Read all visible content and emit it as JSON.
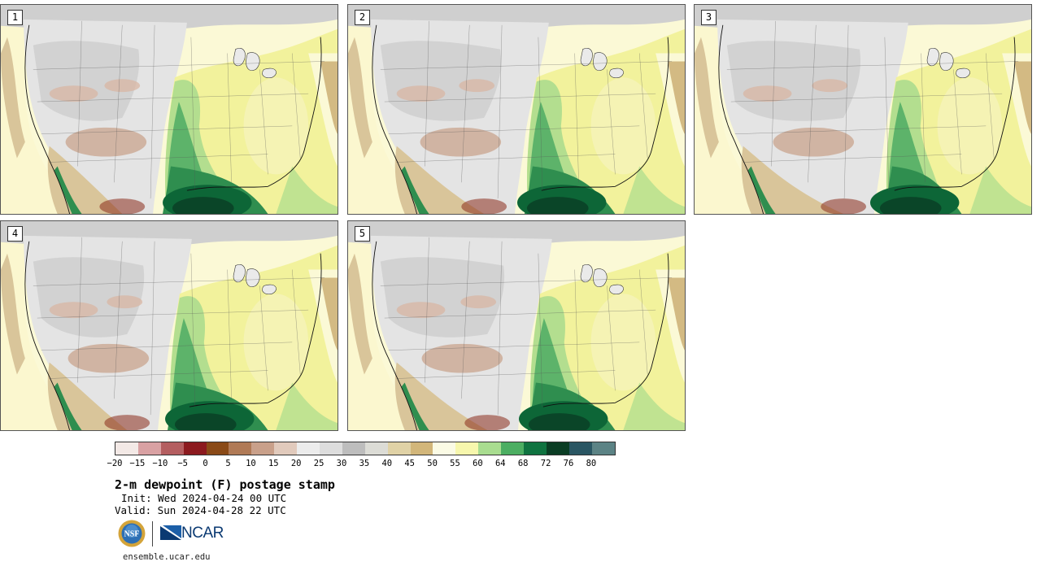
{
  "panels": [
    {
      "id": "1",
      "label": "1"
    },
    {
      "id": "2",
      "label": "2"
    },
    {
      "id": "3",
      "label": "3"
    },
    {
      "id": "4",
      "label": "4"
    },
    {
      "id": "5",
      "label": "5"
    }
  ],
  "colorbar": {
    "colors": [
      "#f3e9e6",
      "#d9a1a3",
      "#b45e60",
      "#8c1a1f",
      "#8a4a17",
      "#b07a56",
      "#c9a08a",
      "#e1cabc",
      "#ececec",
      "#dddddd",
      "#bdbdbd",
      "#dcdcd6",
      "#e0d2a6",
      "#d2b67a",
      "#fbfbe5",
      "#f7f7ad",
      "#a9dd90",
      "#4cae62",
      "#0f7340",
      "#0a3d24",
      "#2a5663",
      "#5c8385"
    ],
    "tick_labels": [
      "−20",
      "−15",
      "−10",
      "−5",
      "0",
      "5",
      "10",
      "15",
      "20",
      "25",
      "30",
      "35",
      "40",
      "45",
      "50",
      "55",
      "60",
      "64",
      "68",
      "72",
      "76",
      "80"
    ]
  },
  "title": "2-m dewpoint (F) postage stamp",
  "init": "Init: Wed 2024-04-24 00 UTC",
  "valid": "Valid: Sun 2024-04-28 22 UTC",
  "logos": {
    "nsf": "NSF",
    "ncar": "NCAR"
  },
  "site": "ensemble.ucar.edu"
}
